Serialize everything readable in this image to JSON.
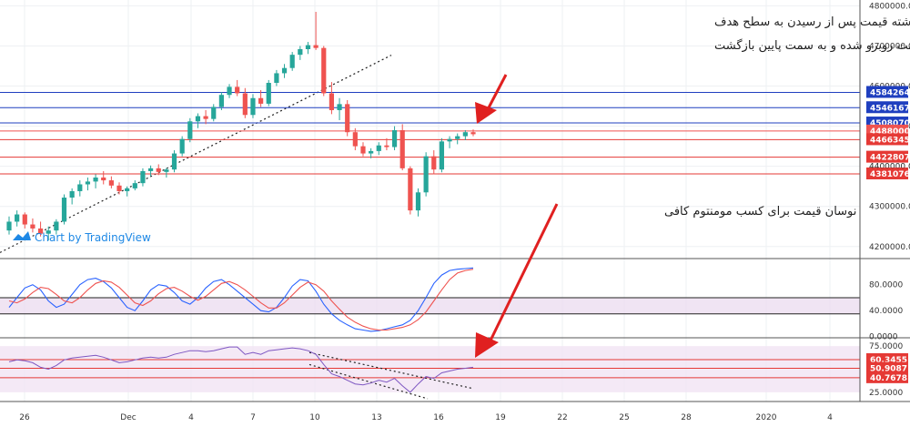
{
  "chart_data": {
    "type": "candlestick",
    "watermark": "Chart by TradingView",
    "annotations": {
      "top_line1": "روز گذشته قیمت پس از رسیدن به سطح هدف",
      "top_line2": "با مقاومت روبرو شده و به سمت پایین بازگشت",
      "mid": "نوسان قیمت برای کسب مومنتوم کافی"
    },
    "x_ticks": [
      "26",
      "Dec",
      "4",
      "7",
      "10",
      "13",
      "16",
      "19",
      "22",
      "25",
      "28",
      "2020",
      "4"
    ],
    "price_axis": {
      "ylim": [
        4170000,
        4810000
      ],
      "ticks": [
        4800000,
        4700000,
        4600000,
        4500000,
        4400000,
        4300000,
        4200000
      ],
      "tick_labels": [
        "4800000.0",
        "4700000.0",
        "4600000.0",
        "4500000.0",
        "4400000.0",
        "4300000.0",
        "4200000.0"
      ],
      "levels": [
        {
          "label": "4584264.0",
          "value": 4584264,
          "color": "#1f3fbf"
        },
        {
          "label": "4546167.0",
          "value": 4546167,
          "color": "#1f3fbf"
        },
        {
          "label": "4508070.0",
          "value": 4508070,
          "color": "#1f3fbf"
        },
        {
          "label": "4488000.0",
          "value": 4488000,
          "color": "#ef5350"
        },
        {
          "label": "4466345.0",
          "value": 4466345,
          "color": "#e53935"
        },
        {
          "label": "4422807.0",
          "value": 4422807,
          "color": "#e53935"
        },
        {
          "label": "4381076.0",
          "value": 4381076,
          "color": "#e53935"
        }
      ],
      "hidden_tick": "4400000.0"
    },
    "candles": [
      [
        4240000,
        4275000,
        4230000,
        4262000
      ],
      [
        4262000,
        4290000,
        4250000,
        4280000
      ],
      [
        4280000,
        4285000,
        4245000,
        4255000
      ],
      [
        4255000,
        4270000,
        4235000,
        4245000
      ],
      [
        4245000,
        4262000,
        4225000,
        4232000
      ],
      [
        4232000,
        4250000,
        4215000,
        4240000
      ],
      [
        4240000,
        4268000,
        4230000,
        4262000
      ],
      [
        4262000,
        4330000,
        4255000,
        4322000
      ],
      [
        4322000,
        4345000,
        4305000,
        4338000
      ],
      [
        4338000,
        4365000,
        4325000,
        4355000
      ],
      [
        4355000,
        4372000,
        4340000,
        4362000
      ],
      [
        4362000,
        4380000,
        4345000,
        4372000
      ],
      [
        4372000,
        4388000,
        4355000,
        4365000
      ],
      [
        4365000,
        4375000,
        4345000,
        4352000
      ],
      [
        4352000,
        4360000,
        4330000,
        4338000
      ],
      [
        4338000,
        4350000,
        4325000,
        4345000
      ],
      [
        4345000,
        4365000,
        4340000,
        4358000
      ],
      [
        4358000,
        4395000,
        4350000,
        4388000
      ],
      [
        4388000,
        4402000,
        4375000,
        4395000
      ],
      [
        4395000,
        4405000,
        4378000,
        4386000
      ],
      [
        4386000,
        4396000,
        4372000,
        4392000
      ],
      [
        4392000,
        4440000,
        4385000,
        4432000
      ],
      [
        4432000,
        4475000,
        4425000,
        4468000
      ],
      [
        4468000,
        4520000,
        4460000,
        4512000
      ],
      [
        4512000,
        4532000,
        4495000,
        4525000
      ],
      [
        4525000,
        4540000,
        4505000,
        4518000
      ],
      [
        4518000,
        4555000,
        4512000,
        4548000
      ],
      [
        4548000,
        4585000,
        4540000,
        4578000
      ],
      [
        4578000,
        4605000,
        4570000,
        4598000
      ],
      [
        4598000,
        4615000,
        4575000,
        4582000
      ],
      [
        4582000,
        4595000,
        4520000,
        4528000
      ],
      [
        4528000,
        4580000,
        4520000,
        4570000
      ],
      [
        4570000,
        4590000,
        4548000,
        4556000
      ],
      [
        4556000,
        4615000,
        4550000,
        4608000
      ],
      [
        4608000,
        4640000,
        4600000,
        4632000
      ],
      [
        4632000,
        4655000,
        4620000,
        4645000
      ],
      [
        4645000,
        4685000,
        4638000,
        4678000
      ],
      [
        4678000,
        4700000,
        4665000,
        4692000
      ],
      [
        4692000,
        4710000,
        4680000,
        4702000
      ],
      [
        4702000,
        4785000,
        4690000,
        4695000
      ],
      [
        4695000,
        4700000,
        4575000,
        4582000
      ],
      [
        4582000,
        4610000,
        4530000,
        4540000
      ],
      [
        4540000,
        4570000,
        4515000,
        4555000
      ],
      [
        4555000,
        4565000,
        4475000,
        4485000
      ],
      [
        4485000,
        4495000,
        4440000,
        4450000
      ],
      [
        4450000,
        4460000,
        4425000,
        4432000
      ],
      [
        4432000,
        4445000,
        4420000,
        4438000
      ],
      [
        4438000,
        4460000,
        4428000,
        4452000
      ],
      [
        4452000,
        4470000,
        4440000,
        4448000
      ],
      [
        4448000,
        4500000,
        4440000,
        4490000
      ],
      [
        4490000,
        4505000,
        4390000,
        4395000
      ],
      [
        4395000,
        4400000,
        4280000,
        4290000
      ],
      [
        4290000,
        4345000,
        4275000,
        4335000
      ],
      [
        4335000,
        4435000,
        4325000,
        4425000
      ],
      [
        4425000,
        4440000,
        4380000,
        4392000
      ],
      [
        4392000,
        4470000,
        4385000,
        4462000
      ],
      [
        4462000,
        4475000,
        4445000,
        4468000
      ],
      [
        4468000,
        4482000,
        4455000,
        4475000
      ],
      [
        4475000,
        4490000,
        4465000,
        4485000
      ],
      [
        4485000,
        4492000,
        4475000,
        4480000
      ]
    ],
    "stoch_axis": {
      "ylim": [
        -2,
        112
      ],
      "ticks": [
        80,
        40,
        0
      ],
      "tick_labels": [
        "80.0000",
        "40.0000",
        "0.0000"
      ],
      "bands": [
        60,
        35
      ]
    },
    "stoch_k": [
      45,
      60,
      75,
      80,
      72,
      55,
      45,
      50,
      65,
      80,
      88,
      90,
      85,
      75,
      60,
      45,
      40,
      55,
      72,
      80,
      78,
      68,
      55,
      50,
      60,
      75,
      85,
      88,
      80,
      70,
      60,
      50,
      40,
      38,
      45,
      60,
      78,
      88,
      86,
      70,
      50,
      35,
      25,
      18,
      12,
      10,
      8,
      9,
      12,
      15,
      18,
      25,
      40,
      60,
      82,
      95,
      102,
      104,
      105,
      106
    ],
    "stoch_d": [
      55,
      52,
      58,
      68,
      76,
      74,
      65,
      55,
      52,
      60,
      72,
      82,
      86,
      84,
      76,
      64,
      52,
      48,
      55,
      66,
      74,
      76,
      70,
      62,
      56,
      62,
      72,
      82,
      85,
      80,
      72,
      62,
      52,
      44,
      44,
      52,
      64,
      76,
      84,
      80,
      70,
      55,
      42,
      30,
      22,
      16,
      12,
      10,
      10,
      12,
      14,
      18,
      26,
      38,
      55,
      72,
      88,
      98,
      102,
      104
    ],
    "rsi_axis": {
      "ylim": [
        15,
        82
      ],
      "ticks": [
        75,
        25
      ],
      "tick_labels": [
        "75.0000",
        "25.0000"
      ],
      "levels": [
        {
          "label": "60.3455",
          "value": 60.3455,
          "color": "#e53935"
        },
        {
          "label": "50.9087",
          "value": 50.9087,
          "color": "#e53935"
        },
        {
          "label": "40.7678",
          "value": 40.7678,
          "color": "#e53935"
        }
      ]
    },
    "rsi": [
      58,
      60,
      59,
      57,
      52,
      50,
      54,
      60,
      62,
      63,
      64,
      65,
      63,
      60,
      57,
      58,
      60,
      62,
      63,
      62,
      63,
      66,
      68,
      70,
      70,
      69,
      70,
      72,
      74,
      74,
      66,
      68,
      66,
      70,
      71,
      72,
      73,
      72,
      70,
      66,
      55,
      45,
      42,
      38,
      34,
      33,
      35,
      38,
      36,
      40,
      32,
      25,
      34,
      42,
      40,
      46,
      48,
      50,
      51,
      52
    ]
  }
}
